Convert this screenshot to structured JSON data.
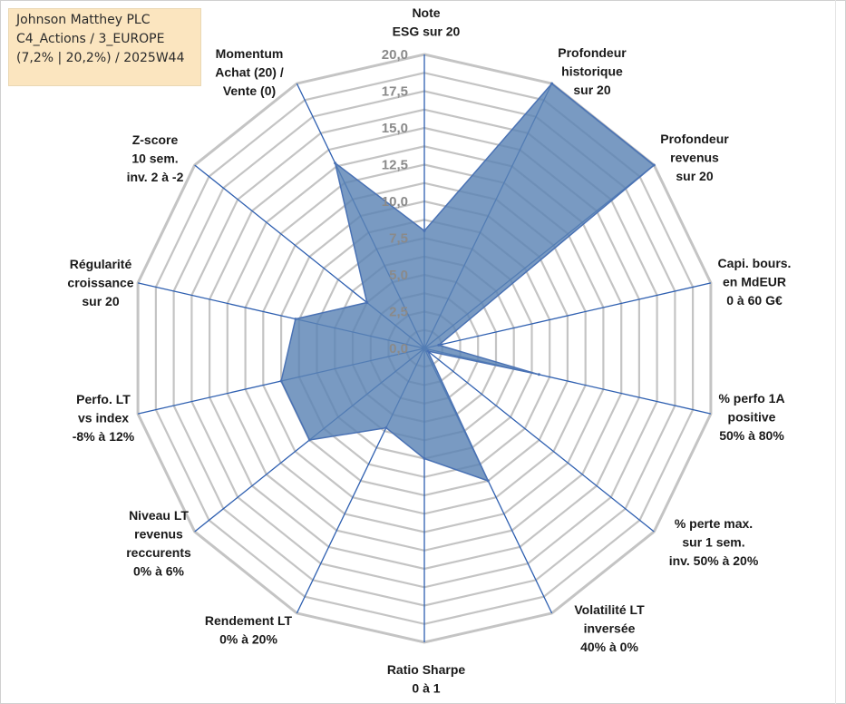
{
  "info": {
    "line1": "Johnson Matthey PLC",
    "line2": "C4_Actions / 3_EUROPE",
    "line3": "(7,2% | 20,2%) / 2025W44"
  },
  "chart_data": {
    "type": "radar",
    "rlim": [
      0,
      20
    ],
    "ticks": [
      "0,0",
      "2,5",
      "5,0",
      "7,5",
      "10,0",
      "12,5",
      "15,0",
      "17,5",
      "20,0"
    ],
    "axes": [
      [
        "Note",
        "ESG sur 20"
      ],
      [
        "Profondeur",
        "historique",
        "sur 20"
      ],
      [
        "Profondeur",
        "revenus",
        "sur 20"
      ],
      [
        "Capi. bours.",
        "en MdEUR",
        "0 à 60 G€"
      ],
      [
        "% perfo 1A",
        "positive",
        "50% à 80%"
      ],
      [
        "% perte max.",
        "sur 1 sem.",
        "inv. 50% à 20%"
      ],
      [
        "Volatilité LT",
        "inversée",
        "40% à 0%"
      ],
      [
        "Ratio Sharpe",
        "0 à 1"
      ],
      [
        "Rendement LT",
        "0% à 20%"
      ],
      [
        "Niveau LT",
        "revenus",
        "reccurents",
        "0% à 6%"
      ],
      [
        "Perfo. LT",
        "vs index",
        "-8% à 12%"
      ],
      [
        "Régularité",
        "croissance",
        "sur 20"
      ],
      [
        "Z-score",
        "10 sem.",
        "inv. 2 à -2"
      ],
      [
        "Momentum",
        "Achat (20) /",
        "Vente (0)"
      ]
    ],
    "values": [
      8,
      20,
      20,
      1,
      8,
      0.3,
      10,
      7.5,
      6,
      10,
      10,
      9,
      5,
      14
    ],
    "grid": true,
    "colors": {
      "fill": "#5b84b5",
      "stroke": "#4a72b4",
      "spoke": "#2e5fb0",
      "grid": "#c4c4c4"
    }
  }
}
